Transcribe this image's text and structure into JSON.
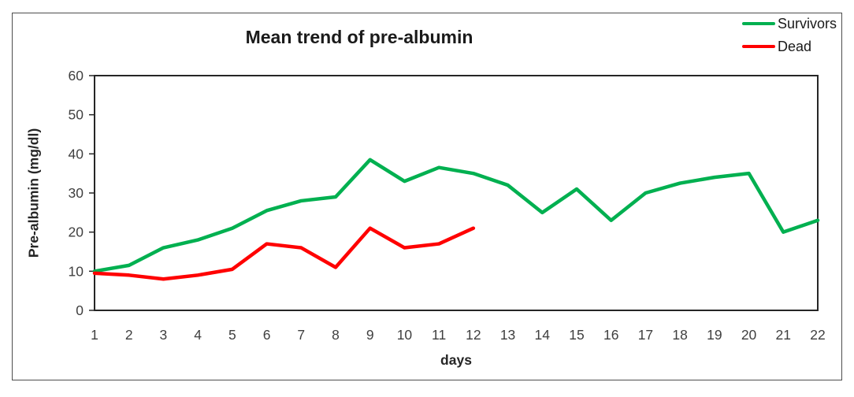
{
  "chart_data": {
    "type": "line",
    "title": "Mean trend of pre-albumin",
    "xlabel": "days",
    "ylabel": "Pre-albumin  (mg/dl)",
    "x": [
      1,
      2,
      3,
      4,
      5,
      6,
      7,
      8,
      9,
      10,
      11,
      12,
      13,
      14,
      15,
      16,
      17,
      18,
      19,
      20,
      21,
      22
    ],
    "ylim": [
      0,
      60
    ],
    "yticks": [
      0,
      10,
      20,
      30,
      40,
      50,
      60
    ],
    "grid": false,
    "legend_position": "top-right",
    "series": [
      {
        "name": "Survivors",
        "color": "#00b050",
        "values": [
          10,
          11.5,
          16,
          18,
          21,
          25.5,
          28,
          29,
          38.5,
          33,
          36.5,
          35,
          32,
          25,
          31,
          23,
          30,
          32.5,
          34,
          35,
          20,
          23
        ]
      },
      {
        "name": "Dead",
        "color": "#ff0000",
        "values": [
          9.5,
          9,
          8,
          9,
          10.5,
          17,
          16,
          11,
          21,
          16,
          17,
          21
        ]
      }
    ]
  },
  "frame": {
    "border_color": "#4d4d4d",
    "plot_border_color": "#262626",
    "tick_label_color": "#3f3f3f"
  }
}
